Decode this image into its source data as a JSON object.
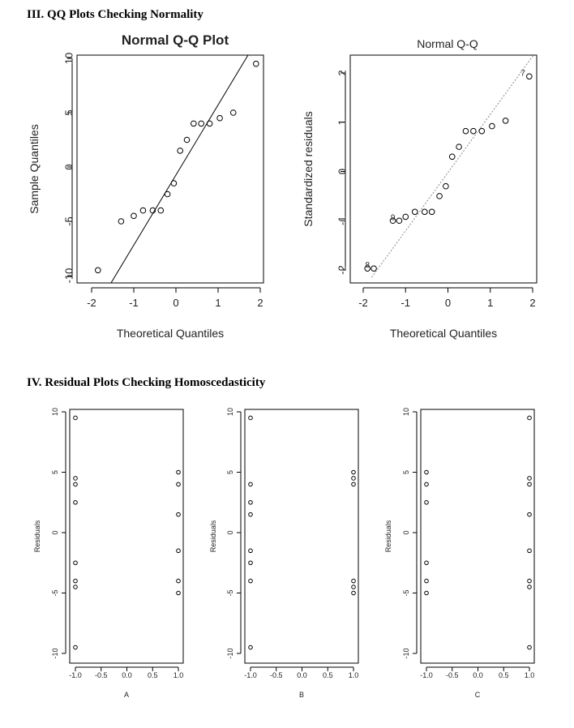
{
  "headings": {
    "qq_section": "III. QQ Plots Checking Normality",
    "residual_section": "IV.  Residual Plots Checking Homoscedasticity"
  },
  "colors": {
    "ink": "#000000",
    "text": "#222222",
    "dotted_line": "#888888"
  },
  "chart_data": [
    {
      "type": "scatter",
      "title": "Normal Q-Q Plot",
      "xlabel": "Theoretical Quantiles",
      "ylabel": "Sample Quantiles",
      "xlim": [
        -2.0,
        2.0
      ],
      "ylim": [
        -10.5,
        10.5
      ],
      "xticks": [
        "-2",
        "-1",
        "0",
        "1",
        "2"
      ],
      "yticks": [
        "-10",
        "-5",
        "0",
        "5",
        "10"
      ],
      "reference_line": {
        "x": [
          -1.9,
          1.85
        ],
        "y": [
          -13,
          11.2
        ],
        "style": "solid"
      },
      "points": [
        {
          "x": -1.85,
          "y": -9.5
        },
        {
          "x": -1.3,
          "y": -5.0
        },
        {
          "x": -1.0,
          "y": -4.5
        },
        {
          "x": -0.78,
          "y": -4.0
        },
        {
          "x": -0.55,
          "y": -4.0
        },
        {
          "x": -0.36,
          "y": -4.0
        },
        {
          "x": -0.2,
          "y": -2.5
        },
        {
          "x": -0.05,
          "y": -1.5
        },
        {
          "x": 0.1,
          "y": 1.5
        },
        {
          "x": 0.26,
          "y": 2.5
        },
        {
          "x": 0.42,
          "y": 4.0
        },
        {
          "x": 0.6,
          "y": 4.0
        },
        {
          "x": 0.8,
          "y": 4.0
        },
        {
          "x": 1.04,
          "y": 4.5
        },
        {
          "x": 1.36,
          "y": 5.0
        },
        {
          "x": 1.9,
          "y": 9.5
        }
      ]
    },
    {
      "type": "scatter",
      "title": "Normal Q-Q",
      "xlabel": "Theoretical Quantiles",
      "ylabel": "Standardized residuals",
      "xlim": [
        -2.0,
        2.0
      ],
      "ylim": [
        -2.1,
        2.4
      ],
      "xticks": [
        "-2",
        "-1",
        "0",
        "1",
        "2"
      ],
      "yticks": [
        "-2",
        "-1",
        "0",
        "1",
        "2"
      ],
      "reference_line": {
        "x": [
          -1.8,
          2.05
        ],
        "y": [
          -2.15,
          2.4
        ],
        "style": "dotted"
      },
      "points": [
        {
          "x": -1.9,
          "y": -1.97,
          "label": ""
        },
        {
          "x": -1.75,
          "y": -1.97,
          "label": "8"
        },
        {
          "x": -1.3,
          "y": -1.0,
          "label": ""
        },
        {
          "x": -1.15,
          "y": -1.0,
          "label": "9"
        },
        {
          "x": -1.0,
          "y": -0.92,
          "label": ""
        },
        {
          "x": -0.78,
          "y": -0.82,
          "label": ""
        },
        {
          "x": -0.55,
          "y": -0.82,
          "label": ""
        },
        {
          "x": -0.38,
          "y": -0.82,
          "label": ""
        },
        {
          "x": -0.2,
          "y": -0.5,
          "label": ""
        },
        {
          "x": -0.05,
          "y": -0.3,
          "label": ""
        },
        {
          "x": 0.1,
          "y": 0.3,
          "label": ""
        },
        {
          "x": 0.26,
          "y": 0.5,
          "label": ""
        },
        {
          "x": 0.42,
          "y": 0.82,
          "label": ""
        },
        {
          "x": 0.6,
          "y": 0.82,
          "label": ""
        },
        {
          "x": 0.8,
          "y": 0.82,
          "label": ""
        },
        {
          "x": 1.04,
          "y": 0.92,
          "label": ""
        },
        {
          "x": 1.36,
          "y": 1.03,
          "label": ""
        },
        {
          "x": 1.92,
          "y": 1.93,
          "label": "7"
        }
      ]
    },
    {
      "type": "scatter",
      "title": "",
      "xlabel": "A",
      "ylabel": "Residuals",
      "xlim": [
        -1.05,
        1.05
      ],
      "ylim": [
        -10.5,
        10.5
      ],
      "xticks": [
        "-1.0",
        "-0.5",
        "0.0",
        "0.5",
        "1.0"
      ],
      "yticks": [
        "-10",
        "-5",
        "0",
        "5",
        "10"
      ],
      "points": [
        {
          "x": -1,
          "y": 9.5
        },
        {
          "x": -1,
          "y": 4.5
        },
        {
          "x": -1,
          "y": 4.0
        },
        {
          "x": -1,
          "y": 2.5
        },
        {
          "x": -1,
          "y": -2.5
        },
        {
          "x": -1,
          "y": -4.0
        },
        {
          "x": -1,
          "y": -4.5
        },
        {
          "x": -1,
          "y": -9.5
        },
        {
          "x": 1,
          "y": 5.0
        },
        {
          "x": 1,
          "y": 4.0
        },
        {
          "x": 1,
          "y": 1.5
        },
        {
          "x": 1,
          "y": -1.5
        },
        {
          "x": 1,
          "y": -4.0
        },
        {
          "x": 1,
          "y": -5.0
        }
      ]
    },
    {
      "type": "scatter",
      "title": "",
      "xlabel": "B",
      "ylabel": "Residuals",
      "xlim": [
        -1.05,
        1.05
      ],
      "ylim": [
        -10.5,
        10.5
      ],
      "xticks": [
        "-1.0",
        "-0.5",
        "0.0",
        "0.5",
        "1.0"
      ],
      "yticks": [
        "-10",
        "-5",
        "0",
        "5",
        "10"
      ],
      "points": [
        {
          "x": -1,
          "y": 9.5
        },
        {
          "x": -1,
          "y": 4.0
        },
        {
          "x": -1,
          "y": 2.5
        },
        {
          "x": -1,
          "y": 1.5
        },
        {
          "x": -1,
          "y": -1.5
        },
        {
          "x": -1,
          "y": -2.5
        },
        {
          "x": -1,
          "y": -4.0
        },
        {
          "x": -1,
          "y": -9.5
        },
        {
          "x": 1,
          "y": 5.0
        },
        {
          "x": 1,
          "y": 4.5
        },
        {
          "x": 1,
          "y": 4.0
        },
        {
          "x": 1,
          "y": -4.0
        },
        {
          "x": 1,
          "y": -4.5
        },
        {
          "x": 1,
          "y": -5.0
        }
      ]
    },
    {
      "type": "scatter",
      "title": "",
      "xlabel": "C",
      "ylabel": "Residuals",
      "xlim": [
        -1.05,
        1.05
      ],
      "ylim": [
        -10.5,
        10.5
      ],
      "xticks": [
        "-1.0",
        "-0.5",
        "0.0",
        "0.5",
        "1.0"
      ],
      "yticks": [
        "-10",
        "-5",
        "0",
        "5",
        "10"
      ],
      "points": [
        {
          "x": -1,
          "y": 5.0
        },
        {
          "x": -1,
          "y": 4.0
        },
        {
          "x": -1,
          "y": 2.5
        },
        {
          "x": -1,
          "y": -2.5
        },
        {
          "x": -1,
          "y": -4.0
        },
        {
          "x": -1,
          "y": -5.0
        },
        {
          "x": 1,
          "y": 9.5
        },
        {
          "x": 1,
          "y": 4.5
        },
        {
          "x": 1,
          "y": 4.0
        },
        {
          "x": 1,
          "y": 1.5
        },
        {
          "x": 1,
          "y": -1.5
        },
        {
          "x": 1,
          "y": -4.0
        },
        {
          "x": 1,
          "y": -4.5
        },
        {
          "x": 1,
          "y": -9.5
        }
      ]
    }
  ]
}
